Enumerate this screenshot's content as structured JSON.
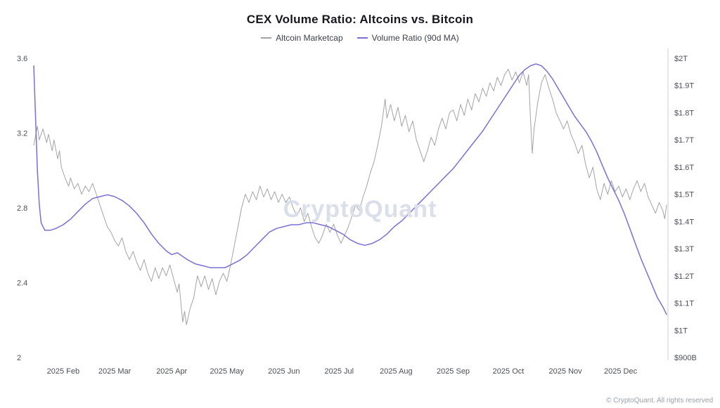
{
  "page": {
    "copyright": "© CryptoQuant. All rights reserved",
    "watermark": "CryptoQuant"
  },
  "chart_data": {
    "type": "line",
    "title": "CEX Volume Ratio: Altcoins vs. Bitcoin",
    "background": "#ffffff",
    "grid": false,
    "legend_position": "top-center",
    "legend": [
      {
        "label": "Altcoin Marketcap",
        "color": "#a3a3a3",
        "axis": "right"
      },
      {
        "label": "Volume Ratio (90d MA)",
        "color": "#7a70d6",
        "axis": "left"
      }
    ],
    "x_axis": {
      "unit": "day of year 2025",
      "range": [
        16,
        360
      ],
      "ticks": [
        {
          "day": 32,
          "label": "2025 Feb"
        },
        {
          "day": 60,
          "label": "2025 Mar"
        },
        {
          "day": 91,
          "label": "2025 Apr"
        },
        {
          "day": 121,
          "label": "2025 May"
        },
        {
          "day": 152,
          "label": "2025 Jun"
        },
        {
          "day": 182,
          "label": "2025 Jul"
        },
        {
          "day": 213,
          "label": "2025 Aug"
        },
        {
          "day": 244,
          "label": "2025 Sep"
        },
        {
          "day": 274,
          "label": "2025 Oct"
        },
        {
          "day": 305,
          "label": "2025 Nov"
        },
        {
          "day": 335,
          "label": "2025 Dec"
        }
      ]
    },
    "left_axis": {
      "range": [
        2,
        3.6
      ],
      "ticks": [
        {
          "value": 3.6,
          "label": "3.6"
        },
        {
          "value": 3.2,
          "label": "3.2"
        },
        {
          "value": 2.8,
          "label": "2.8"
        },
        {
          "value": 2.4,
          "label": "2.4"
        },
        {
          "value": 2.0,
          "label": "2"
        }
      ]
    },
    "right_axis": {
      "range": [
        0.9,
        2.0
      ],
      "ticks": [
        {
          "value": 2.0,
          "label": "$2T"
        },
        {
          "value": 1.9,
          "label": "$1.9T"
        },
        {
          "value": 1.8,
          "label": "$1.8T"
        },
        {
          "value": 1.7,
          "label": "$1.7T"
        },
        {
          "value": 1.6,
          "label": "$1.6T"
        },
        {
          "value": 1.5,
          "label": "$1.5T"
        },
        {
          "value": 1.4,
          "label": "$1.4T"
        },
        {
          "value": 1.3,
          "label": "$1.3T"
        },
        {
          "value": 1.2,
          "label": "$1.2T"
        },
        {
          "value": 1.1,
          "label": "$1.1T"
        },
        {
          "value": 1.0,
          "label": "$1T"
        },
        {
          "value": 0.9,
          "label": "$900B"
        }
      ]
    },
    "series": [
      {
        "name": "Altcoin Marketcap",
        "axis": "right",
        "unit": "USD trillions",
        "color": "#a3a3a3",
        "points": [
          [
            16,
            1.68
          ],
          [
            18,
            1.75
          ],
          [
            19,
            1.7
          ],
          [
            21,
            1.74
          ],
          [
            23,
            1.69
          ],
          [
            24,
            1.72
          ],
          [
            26,
            1.66
          ],
          [
            27,
            1.7
          ],
          [
            29,
            1.63
          ],
          [
            30,
            1.66
          ],
          [
            31,
            1.6
          ],
          [
            33,
            1.56
          ],
          [
            35,
            1.53
          ],
          [
            36,
            1.56
          ],
          [
            38,
            1.52
          ],
          [
            40,
            1.54
          ],
          [
            42,
            1.5
          ],
          [
            44,
            1.53
          ],
          [
            46,
            1.51
          ],
          [
            48,
            1.54
          ],
          [
            50,
            1.5
          ],
          [
            52,
            1.46
          ],
          [
            54,
            1.42
          ],
          [
            56,
            1.38
          ],
          [
            58,
            1.36
          ],
          [
            60,
            1.33
          ],
          [
            62,
            1.31
          ],
          [
            64,
            1.34
          ],
          [
            66,
            1.29
          ],
          [
            68,
            1.26
          ],
          [
            70,
            1.29
          ],
          [
            72,
            1.25
          ],
          [
            74,
            1.22
          ],
          [
            76,
            1.26
          ],
          [
            78,
            1.21
          ],
          [
            80,
            1.18
          ],
          [
            82,
            1.23
          ],
          [
            84,
            1.19
          ],
          [
            86,
            1.23
          ],
          [
            88,
            1.2
          ],
          [
            90,
            1.24
          ],
          [
            92,
            1.19
          ],
          [
            94,
            1.14
          ],
          [
            95,
            1.17
          ],
          [
            96,
            1.1
          ],
          [
            97,
            1.03
          ],
          [
            98,
            1.07
          ],
          [
            99,
            1.02
          ],
          [
            101,
            1.08
          ],
          [
            103,
            1.12
          ],
          [
            105,
            1.2
          ],
          [
            107,
            1.16
          ],
          [
            109,
            1.2
          ],
          [
            111,
            1.15
          ],
          [
            113,
            1.19
          ],
          [
            115,
            1.13
          ],
          [
            117,
            1.18
          ],
          [
            119,
            1.21
          ],
          [
            121,
            1.18
          ],
          [
            123,
            1.24
          ],
          [
            125,
            1.31
          ],
          [
            127,
            1.38
          ],
          [
            129,
            1.45
          ],
          [
            131,
            1.5
          ],
          [
            133,
            1.47
          ],
          [
            135,
            1.51
          ],
          [
            137,
            1.48
          ],
          [
            139,
            1.53
          ],
          [
            141,
            1.49
          ],
          [
            143,
            1.52
          ],
          [
            145,
            1.48
          ],
          [
            147,
            1.51
          ],
          [
            149,
            1.47
          ],
          [
            151,
            1.5
          ],
          [
            153,
            1.47
          ],
          [
            155,
            1.49
          ],
          [
            157,
            1.45
          ],
          [
            159,
            1.42
          ],
          [
            161,
            1.45
          ],
          [
            163,
            1.4
          ],
          [
            165,
            1.43
          ],
          [
            167,
            1.38
          ],
          [
            169,
            1.34
          ],
          [
            171,
            1.32
          ],
          [
            173,
            1.35
          ],
          [
            175,
            1.39
          ],
          [
            177,
            1.36
          ],
          [
            179,
            1.39
          ],
          [
            181,
            1.35
          ],
          [
            183,
            1.32
          ],
          [
            185,
            1.35
          ],
          [
            187,
            1.38
          ],
          [
            189,
            1.42
          ],
          [
            191,
            1.46
          ],
          [
            193,
            1.44
          ],
          [
            195,
            1.49
          ],
          [
            197,
            1.53
          ],
          [
            199,
            1.58
          ],
          [
            201,
            1.62
          ],
          [
            203,
            1.68
          ],
          [
            205,
            1.75
          ],
          [
            207,
            1.85
          ],
          [
            208,
            1.78
          ],
          [
            210,
            1.83
          ],
          [
            212,
            1.77
          ],
          [
            214,
            1.82
          ],
          [
            216,
            1.75
          ],
          [
            218,
            1.79
          ],
          [
            220,
            1.73
          ],
          [
            222,
            1.77
          ],
          [
            224,
            1.7
          ],
          [
            226,
            1.66
          ],
          [
            228,
            1.62
          ],
          [
            230,
            1.66
          ],
          [
            232,
            1.71
          ],
          [
            234,
            1.68
          ],
          [
            236,
            1.74
          ],
          [
            238,
            1.78
          ],
          [
            240,
            1.74
          ],
          [
            242,
            1.8
          ],
          [
            244,
            1.81
          ],
          [
            246,
            1.77
          ],
          [
            248,
            1.83
          ],
          [
            250,
            1.79
          ],
          [
            252,
            1.85
          ],
          [
            254,
            1.81
          ],
          [
            256,
            1.87
          ],
          [
            258,
            1.84
          ],
          [
            260,
            1.89
          ],
          [
            262,
            1.86
          ],
          [
            264,
            1.91
          ],
          [
            266,
            1.88
          ],
          [
            268,
            1.93
          ],
          [
            270,
            1.9
          ],
          [
            272,
            1.94
          ],
          [
            274,
            1.96
          ],
          [
            276,
            1.92
          ],
          [
            278,
            1.95
          ],
          [
            280,
            1.91
          ],
          [
            282,
            1.95
          ],
          [
            284,
            1.9
          ],
          [
            285,
            1.94
          ],
          [
            286,
            1.78
          ],
          [
            287,
            1.65
          ],
          [
            288,
            1.74
          ],
          [
            290,
            1.84
          ],
          [
            292,
            1.91
          ],
          [
            294,
            1.94
          ],
          [
            296,
            1.89
          ],
          [
            298,
            1.85
          ],
          [
            300,
            1.8
          ],
          [
            302,
            1.77
          ],
          [
            304,
            1.74
          ],
          [
            306,
            1.77
          ],
          [
            308,
            1.72
          ],
          [
            310,
            1.69
          ],
          [
            312,
            1.65
          ],
          [
            314,
            1.68
          ],
          [
            316,
            1.61
          ],
          [
            318,
            1.56
          ],
          [
            320,
            1.6
          ],
          [
            322,
            1.52
          ],
          [
            324,
            1.48
          ],
          [
            326,
            1.54
          ],
          [
            328,
            1.5
          ],
          [
            330,
            1.55
          ],
          [
            332,
            1.51
          ],
          [
            334,
            1.53
          ],
          [
            336,
            1.49
          ],
          [
            338,
            1.52
          ],
          [
            340,
            1.48
          ],
          [
            342,
            1.52
          ],
          [
            344,
            1.55
          ],
          [
            346,
            1.51
          ],
          [
            348,
            1.54
          ],
          [
            350,
            1.49
          ],
          [
            352,
            1.46
          ],
          [
            354,
            1.43
          ],
          [
            356,
            1.47
          ],
          [
            358,
            1.44
          ],
          [
            359,
            1.41
          ],
          [
            360,
            1.46
          ]
        ]
      },
      {
        "name": "Volume Ratio (90d MA)",
        "axis": "left",
        "unit": "ratio",
        "color": "#7a70d6",
        "points": [
          [
            16,
            3.56
          ],
          [
            17,
            3.28
          ],
          [
            18,
            3.0
          ],
          [
            19,
            2.82
          ],
          [
            20,
            2.72
          ],
          [
            22,
            2.68
          ],
          [
            25,
            2.68
          ],
          [
            28,
            2.69
          ],
          [
            32,
            2.71
          ],
          [
            36,
            2.74
          ],
          [
            40,
            2.78
          ],
          [
            44,
            2.82
          ],
          [
            48,
            2.85
          ],
          [
            52,
            2.86
          ],
          [
            56,
            2.87
          ],
          [
            60,
            2.86
          ],
          [
            64,
            2.84
          ],
          [
            68,
            2.81
          ],
          [
            72,
            2.77
          ],
          [
            76,
            2.72
          ],
          [
            80,
            2.66
          ],
          [
            84,
            2.61
          ],
          [
            88,
            2.57
          ],
          [
            91,
            2.55
          ],
          [
            94,
            2.56
          ],
          [
            97,
            2.54
          ],
          [
            100,
            2.52
          ],
          [
            104,
            2.5
          ],
          [
            108,
            2.49
          ],
          [
            112,
            2.48
          ],
          [
            116,
            2.48
          ],
          [
            120,
            2.48
          ],
          [
            124,
            2.5
          ],
          [
            128,
            2.52
          ],
          [
            132,
            2.55
          ],
          [
            136,
            2.59
          ],
          [
            140,
            2.63
          ],
          [
            144,
            2.67
          ],
          [
            148,
            2.69
          ],
          [
            152,
            2.7
          ],
          [
            156,
            2.71
          ],
          [
            160,
            2.71
          ],
          [
            164,
            2.72
          ],
          [
            168,
            2.72
          ],
          [
            172,
            2.71
          ],
          [
            176,
            2.7
          ],
          [
            180,
            2.68
          ],
          [
            184,
            2.66
          ],
          [
            188,
            2.63
          ],
          [
            192,
            2.61
          ],
          [
            196,
            2.6
          ],
          [
            200,
            2.61
          ],
          [
            204,
            2.63
          ],
          [
            208,
            2.66
          ],
          [
            212,
            2.7
          ],
          [
            216,
            2.73
          ],
          [
            220,
            2.77
          ],
          [
            224,
            2.81
          ],
          [
            228,
            2.85
          ],
          [
            232,
            2.89
          ],
          [
            236,
            2.93
          ],
          [
            240,
            2.97
          ],
          [
            244,
            3.01
          ],
          [
            248,
            3.06
          ],
          [
            252,
            3.11
          ],
          [
            256,
            3.16
          ],
          [
            260,
            3.21
          ],
          [
            264,
            3.27
          ],
          [
            268,
            3.33
          ],
          [
            272,
            3.39
          ],
          [
            276,
            3.45
          ],
          [
            280,
            3.51
          ],
          [
            283,
            3.54
          ],
          [
            286,
            3.56
          ],
          [
            289,
            3.57
          ],
          [
            292,
            3.56
          ],
          [
            295,
            3.53
          ],
          [
            298,
            3.49
          ],
          [
            301,
            3.44
          ],
          [
            304,
            3.39
          ],
          [
            307,
            3.34
          ],
          [
            310,
            3.29
          ],
          [
            313,
            3.25
          ],
          [
            316,
            3.21
          ],
          [
            319,
            3.16
          ],
          [
            322,
            3.1
          ],
          [
            325,
            3.03
          ],
          [
            328,
            2.96
          ],
          [
            331,
            2.9
          ],
          [
            334,
            2.84
          ],
          [
            337,
            2.77
          ],
          [
            340,
            2.69
          ],
          [
            343,
            2.61
          ],
          [
            346,
            2.53
          ],
          [
            349,
            2.46
          ],
          [
            352,
            2.39
          ],
          [
            355,
            2.32
          ],
          [
            358,
            2.27
          ],
          [
            360,
            2.23
          ]
        ]
      }
    ]
  }
}
